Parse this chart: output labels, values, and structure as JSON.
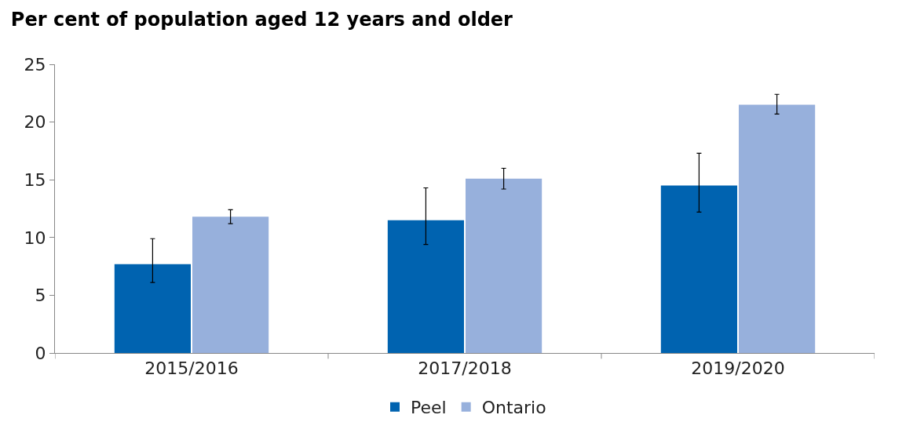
{
  "chart_data": {
    "type": "bar",
    "title": "Per cent of population aged 12 years and older",
    "categories": [
      "2015/2016",
      "2017/2018",
      "2019/2020"
    ],
    "series": [
      {
        "name": "Peel",
        "color": "#0063b0",
        "values": [
          7.7,
          11.5,
          14.5
        ],
        "errors": [
          [
            6.1,
            9.9
          ],
          [
            9.4,
            14.3
          ],
          [
            12.2,
            17.3
          ]
        ]
      },
      {
        "name": "Ontario",
        "color": "#97b0dc",
        "values": [
          11.8,
          15.1,
          21.5
        ],
        "errors": [
          [
            11.2,
            12.4
          ],
          [
            14.2,
            16.0
          ],
          [
            20.7,
            22.4
          ]
        ]
      }
    ],
    "ylim": [
      0,
      25
    ],
    "yticks": [
      0,
      5,
      10,
      15,
      20,
      25
    ],
    "grid": false,
    "legend": "bottom"
  }
}
